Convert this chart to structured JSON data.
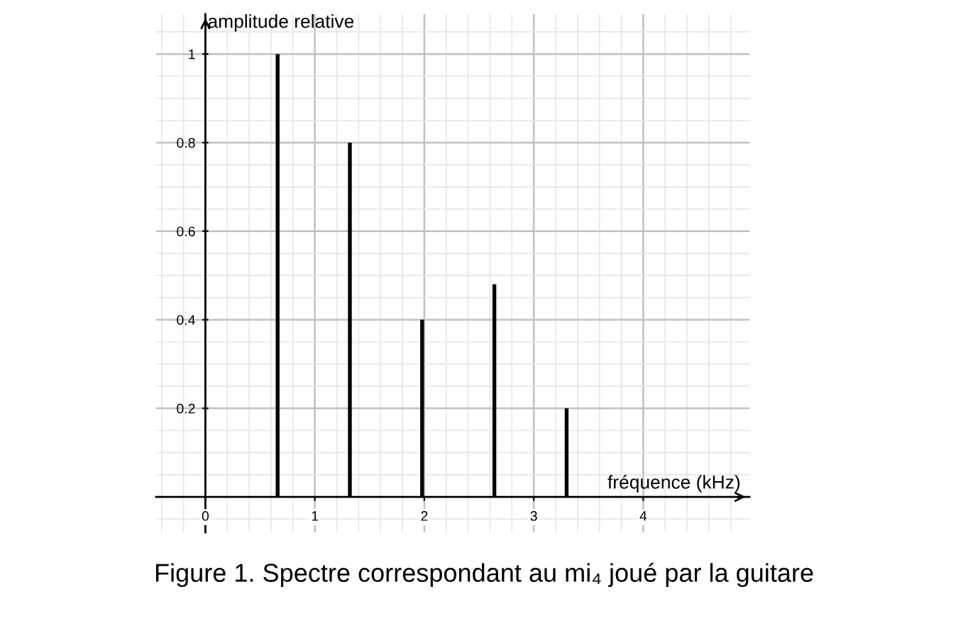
{
  "chart_data": {
    "type": "bar",
    "title": "Figure 1. Spectre correspondant au mi₄ joué par la guitare",
    "xlabel": "fréquence (kHz)",
    "ylabel": "amplitude relative",
    "x": [
      0.66,
      1.32,
      1.98,
      2.64,
      3.3
    ],
    "values": [
      1,
      0.8,
      0.4,
      0.48,
      0.2
    ],
    "color": "#000000",
    "xlim": [
      -0.45,
      4.97
    ],
    "ylim": [
      -0.08,
      1.09
    ],
    "xticks": [
      0,
      1,
      2,
      3,
      4
    ],
    "yticks": [
      0.2,
      0.4,
      0.6,
      0.8,
      1
    ],
    "grid": true,
    "legend": false
  }
}
